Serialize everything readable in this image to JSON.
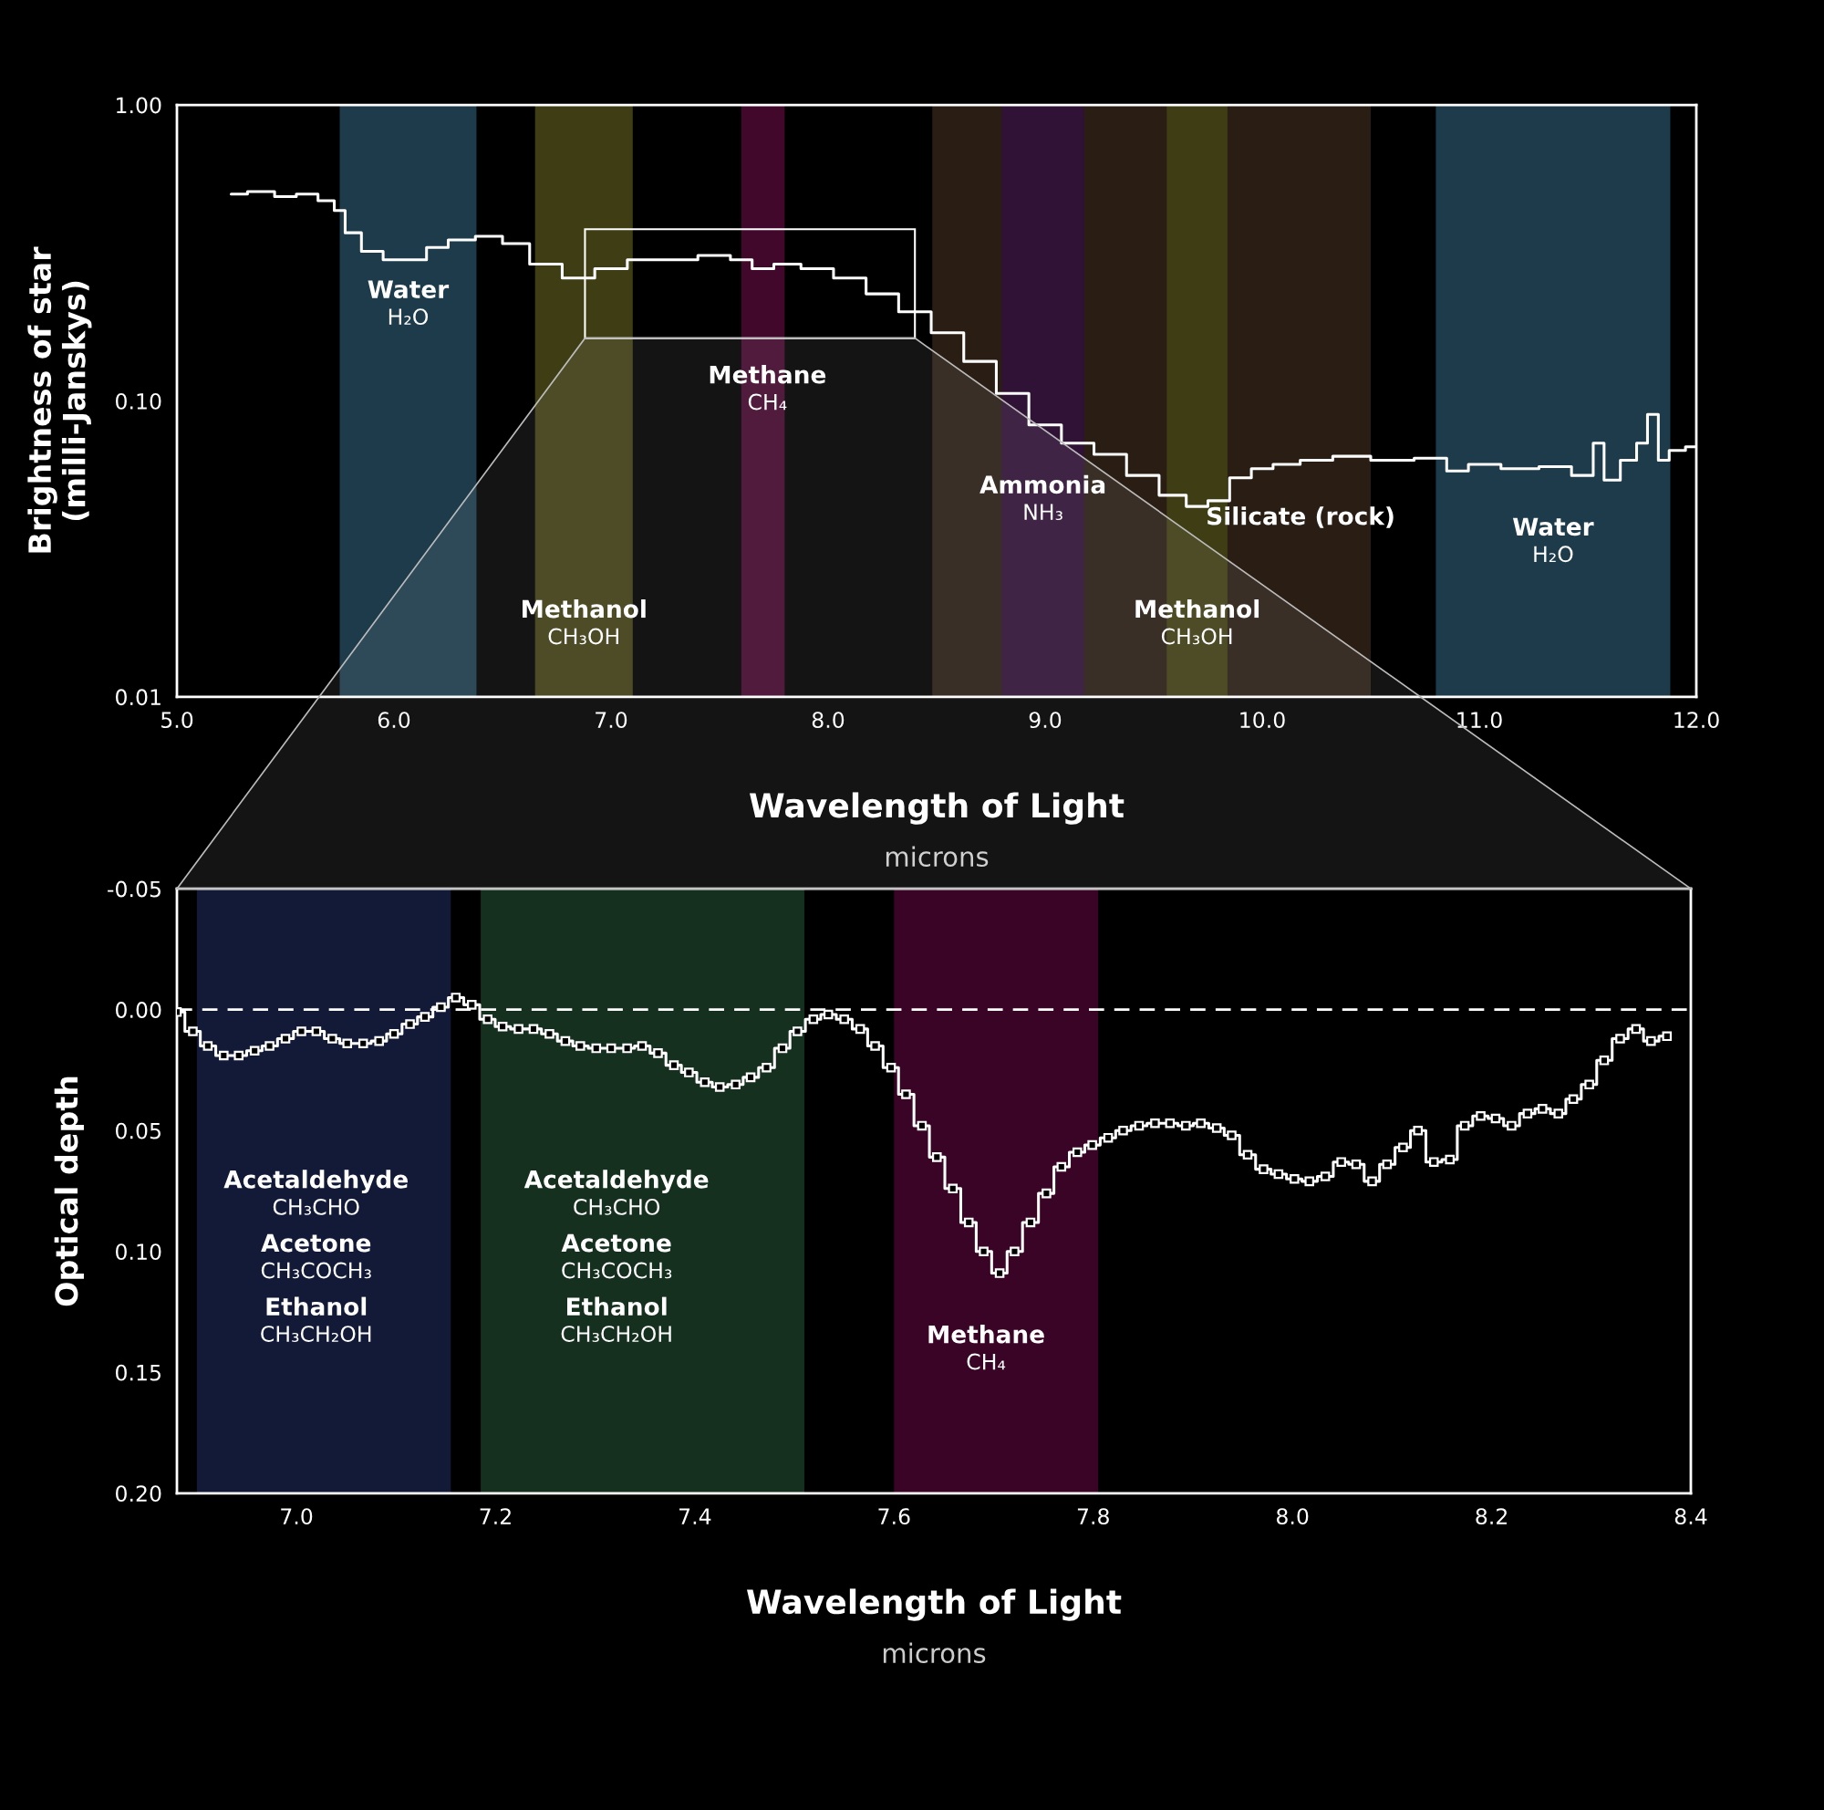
{
  "chart_data": [
    {
      "type": "step",
      "xlabel": "Wavelength of Light\nmicrons",
      "ylabel": "Brightness of star\n(milli-Janskys)",
      "log": "y",
      "xlim": [
        5,
        12
      ],
      "xticks": [
        {
          "value": 5,
          "label": "5.0"
        },
        {
          "value": 6,
          "label": "6.0"
        },
        {
          "value": 7,
          "label": "7.0"
        },
        {
          "value": 8,
          "label": "8.0"
        },
        {
          "value": 9,
          "label": "9.0"
        },
        {
          "value": 10,
          "label": "10.0"
        },
        {
          "value": 11,
          "label": "11.0"
        },
        {
          "value": 12,
          "label": "12.0"
        }
      ],
      "ylim": [
        0.01,
        1
      ],
      "yticks": [
        {
          "value": 0.01,
          "label": "0.01"
        },
        {
          "value": 0.1,
          "label": "0.10"
        },
        {
          "value": 1,
          "label": "1.00"
        }
      ],
      "series": [
        {
          "color": "#ffffff",
          "x": [
            5.25,
            5.4,
            5.5,
            5.6,
            5.7,
            5.75,
            5.8,
            5.9,
            6.0,
            6.1,
            6.2,
            6.3,
            6.45,
            6.55,
            6.7,
            6.85,
            7.0,
            7.15,
            7.3,
            7.5,
            7.6,
            7.7,
            7.8,
            7.95,
            8.1,
            8.25,
            8.4,
            8.55,
            8.7,
            8.85,
            9.0,
            9.15,
            9.3,
            9.45,
            9.6,
            9.7,
            9.8,
            9.9,
            10.0,
            10.1,
            10.25,
            10.4,
            10.6,
            10.8,
            10.9,
            11.0,
            11.2,
            11.35,
            11.5,
            11.55,
            11.6,
            11.7,
            11.75,
            11.8,
            11.85,
            11.9,
            12.0
          ],
          "values": [
            0.5,
            0.51,
            0.49,
            0.5,
            0.475,
            0.44,
            0.37,
            0.32,
            0.3,
            0.3,
            0.33,
            0.35,
            0.36,
            0.34,
            0.29,
            0.26,
            0.28,
            0.3,
            0.3,
            0.31,
            0.3,
            0.28,
            0.29,
            0.28,
            0.26,
            0.23,
            0.2,
            0.17,
            0.136,
            0.106,
            0.083,
            0.072,
            0.066,
            0.056,
            0.048,
            0.044,
            0.046,
            0.055,
            0.059,
            0.061,
            0.063,
            0.065,
            0.063,
            0.064,
            0.058,
            0.061,
            0.059,
            0.06,
            0.056,
            0.072,
            0.054,
            0.063,
            0.072,
            0.09,
            0.063,
            0.068,
            0.07
          ]
        }
      ],
      "bands": [
        {
          "axis": "x",
          "from": 8.48,
          "to": 10.5,
          "color": "#2a1e14",
          "label": "Silicate (rock)"
        },
        {
          "axis": "x",
          "from": 5.75,
          "to": 6.38,
          "color": "#1d3b4b",
          "label": "Water\nH₂O"
        },
        {
          "axis": "x",
          "from": 6.65,
          "to": 7.1,
          "color": "#3f3d14",
          "label": "Methanol\nCH₃OH"
        },
        {
          "axis": "x",
          "from": 7.6,
          "to": 7.8,
          "color": "#42082c",
          "label": "Methane\nCH₄"
        },
        {
          "axis": "x",
          "from": 8.8,
          "to": 9.18,
          "color": "#301236",
          "label": "Ammonia\nNH₃"
        },
        {
          "axis": "x",
          "from": 9.56,
          "to": 9.84,
          "color": "#3f3d14",
          "label": "Methanol\nCH₃OH"
        },
        {
          "axis": "x",
          "from": 10.8,
          "to": 11.88,
          "color": "#1d3b4b",
          "label": "Water\nH₂O"
        }
      ]
    },
    {
      "type": "step",
      "xlabel": "Wavelength of Light\nmicrons",
      "ylabel": "Optical depth",
      "marker": "square",
      "xlim": [
        6.88,
        8.4
      ],
      "xticks": [
        {
          "value": 7.0,
          "label": "7.0"
        },
        {
          "value": 7.2,
          "label": "7.2"
        },
        {
          "value": 7.4,
          "label": "7.4"
        },
        {
          "value": 7.6,
          "label": "7.6"
        },
        {
          "value": 7.8,
          "label": "7.8"
        },
        {
          "value": 8.0,
          "label": "8.0"
        },
        {
          "value": 8.2,
          "label": "8.2"
        },
        {
          "value": 8.4,
          "label": "8.4"
        }
      ],
      "ylim": [
        0.2,
        -0.05
      ],
      "yticks": [
        {
          "value": -0.05,
          "label": "-0.05"
        },
        {
          "value": 0,
          "label": "0.00"
        },
        {
          "value": 0.05,
          "label": "0.05"
        },
        {
          "value": 0.1,
          "label": "0.10"
        },
        {
          "value": 0.15,
          "label": "0.15"
        },
        {
          "value": 0.2,
          "label": "0.20"
        }
      ],
      "series": [
        {
          "color": "#ffffff",
          "x": [
            6.88,
            6.896,
            6.911,
            6.927,
            6.942,
            6.958,
            6.973,
            6.989,
            7.005,
            7.02,
            7.036,
            7.051,
            7.067,
            7.083,
            7.098,
            7.114,
            7.129,
            7.145,
            7.16,
            7.176,
            7.192,
            7.207,
            7.223,
            7.238,
            7.254,
            7.27,
            7.285,
            7.301,
            7.316,
            7.332,
            7.347,
            7.363,
            7.379,
            7.394,
            7.41,
            7.425,
            7.441,
            7.456,
            7.472,
            7.488,
            7.503,
            7.519,
            7.534,
            7.55,
            7.566,
            7.581,
            7.597,
            7.612,
            7.628,
            7.643,
            7.659,
            7.675,
            7.69,
            7.706,
            7.721,
            7.737,
            7.753,
            7.768,
            7.784,
            7.799,
            7.815,
            7.83,
            7.846,
            7.862,
            7.877,
            7.893,
            7.908,
            7.924,
            7.939,
            7.955,
            7.971,
            7.986,
            8.002,
            8.017,
            8.033,
            8.049,
            8.064,
            8.08,
            8.095,
            8.111,
            8.126,
            8.142,
            8.158,
            8.173,
            8.189,
            8.204,
            8.22,
            8.236,
            8.251,
            8.267,
            8.282,
            8.298,
            8.313,
            8.329,
            8.345,
            8.36,
            8.376
          ],
          "values": [
            0.001,
            0.009,
            0.015,
            0.019,
            0.019,
            0.017,
            0.015,
            0.012,
            0.009,
            0.009,
            0.012,
            0.014,
            0.014,
            0.013,
            0.01,
            0.006,
            0.003,
            -0.001,
            -0.005,
            -0.002,
            0.004,
            0.007,
            0.008,
            0.008,
            0.01,
            0.013,
            0.015,
            0.016,
            0.016,
            0.016,
            0.015,
            0.018,
            0.023,
            0.026,
            0.03,
            0.032,
            0.031,
            0.028,
            0.024,
            0.016,
            0.009,
            0.004,
            0.002,
            0.004,
            0.008,
            0.015,
            0.024,
            0.035,
            0.048,
            0.061,
            0.074,
            0.088,
            0.1,
            0.109,
            0.1,
            0.088,
            0.076,
            0.065,
            0.059,
            0.056,
            0.053,
            0.05,
            0.048,
            0.047,
            0.047,
            0.048,
            0.047,
            0.049,
            0.052,
            0.06,
            0.066,
            0.068,
            0.07,
            0.071,
            0.069,
            0.063,
            0.064,
            0.071,
            0.064,
            0.057,
            0.05,
            0.063,
            0.062,
            0.048,
            0.044,
            0.045,
            0.048,
            0.043,
            0.041,
            0.043,
            0.037,
            0.031,
            0.021,
            0.012,
            0.008,
            0.013,
            0.011
          ]
        }
      ],
      "ref_lines": [
        {
          "axis": "y",
          "value": 0,
          "line_style": "dashed",
          "color": "#ffffff"
        }
      ],
      "bands": [
        {
          "axis": "x",
          "from": 6.9,
          "to": 7.155,
          "color": "#121a38",
          "label": "Acetaldehyde\nCH₃CHO\nAcetone\nCH₃COCH₃\nEthanol\nCH₃CH₂OH"
        },
        {
          "axis": "x",
          "from": 7.185,
          "to": 7.51,
          "color": "#15301f",
          "label": "Acetaldehyde\nCH₃CHO\nAcetone\nCH₃COCH₃\nEthanol\nCH₃CH₂OH"
        },
        {
          "axis": "x",
          "from": 7.6,
          "to": 7.805,
          "color": "#3a0426",
          "label": "Methane\nCH₄"
        }
      ]
    }
  ]
}
